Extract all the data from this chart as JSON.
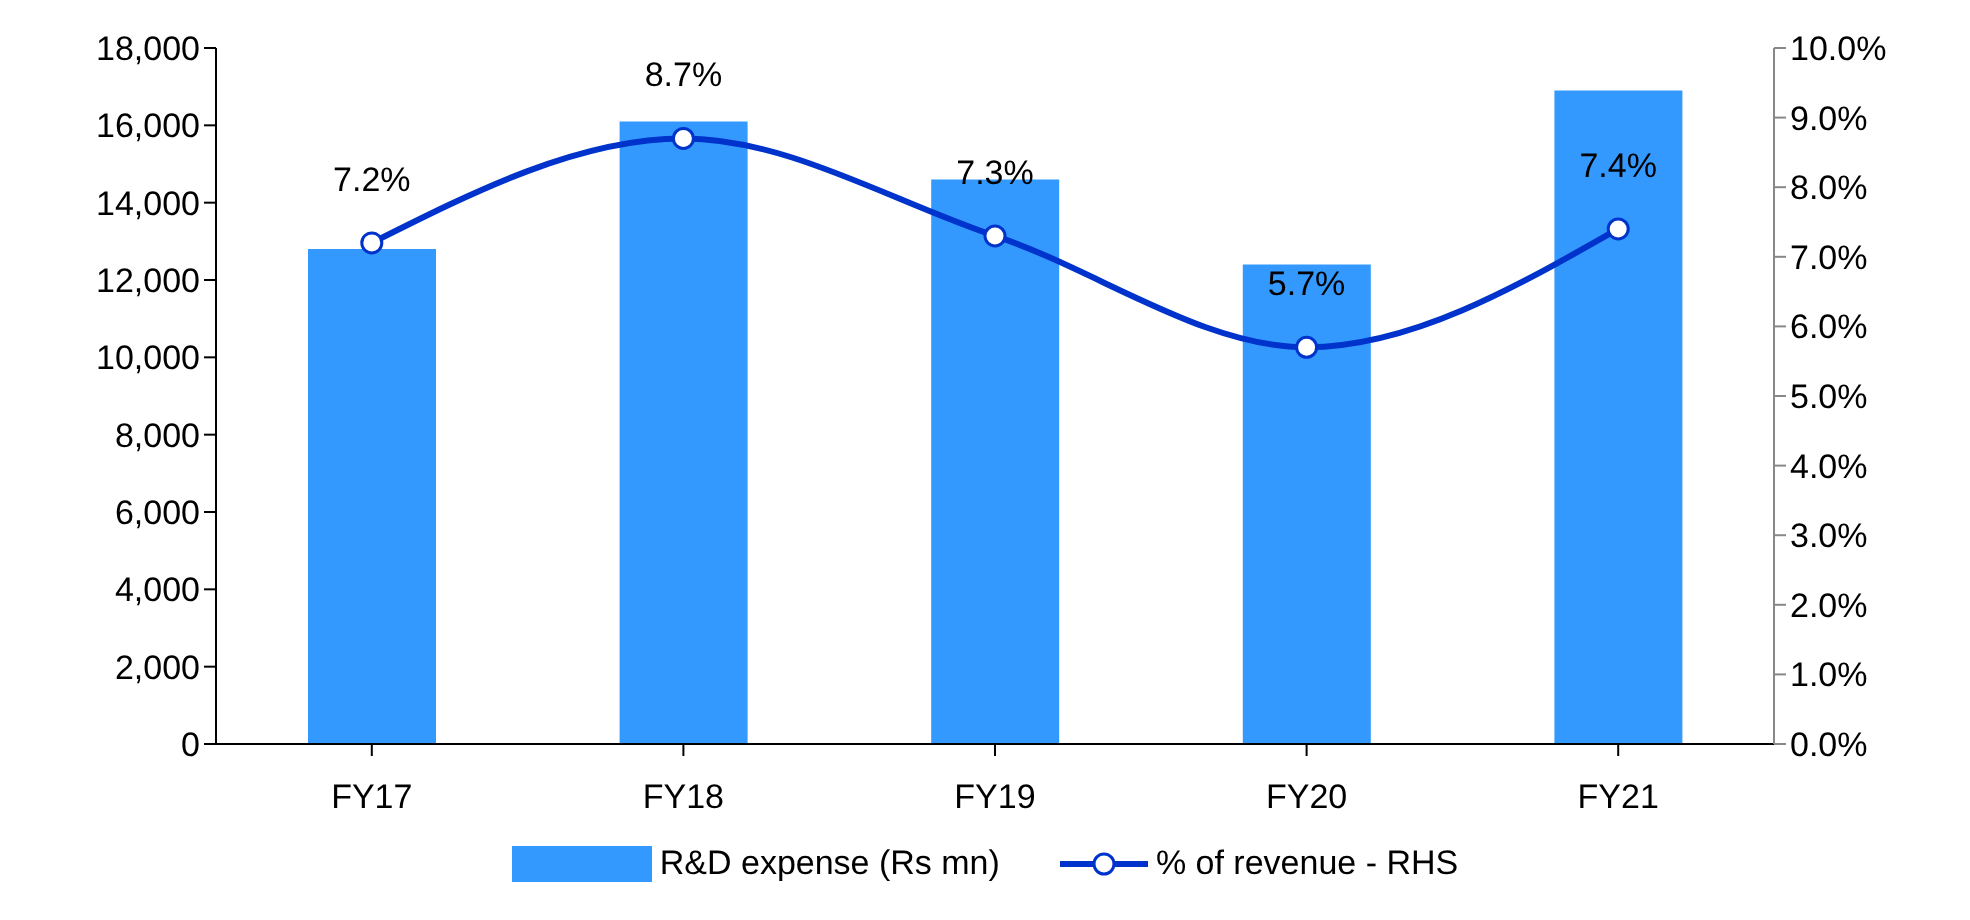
{
  "chart_data": {
    "type": "bar",
    "categories": [
      "FY17",
      "FY18",
      "FY19",
      "FY20",
      "FY21"
    ],
    "series": [
      {
        "name": "R&D expense (Rs mn)",
        "color": "#3399ff",
        "values": [
          12800,
          16100,
          14600,
          12400,
          16900
        ]
      },
      {
        "name": "% of revenue - RHS",
        "type": "line",
        "axis": "y2",
        "color": "#0033cc",
        "values": [
          7.2,
          8.7,
          7.3,
          5.7,
          7.4
        ],
        "value_labels": [
          "7.2%",
          "8.7%",
          "7.3%",
          "5.7%",
          "7.4%"
        ],
        "marker": "circle"
      }
    ],
    "ylim": [
      0,
      18000
    ],
    "yticks": [
      {
        "value": 0,
        "label": "0"
      },
      {
        "value": 2000,
        "label": "2,000"
      },
      {
        "value": 4000,
        "label": "4,000"
      },
      {
        "value": 6000,
        "label": "6,000"
      },
      {
        "value": 8000,
        "label": "8,000"
      },
      {
        "value": 10000,
        "label": "10,000"
      },
      {
        "value": 12000,
        "label": "12,000"
      },
      {
        "value": 14000,
        "label": "14,000"
      },
      {
        "value": 16000,
        "label": "16,000"
      },
      {
        "value": 18000,
        "label": "18,000"
      }
    ],
    "y2lim": [
      0,
      10
    ],
    "y2ticks": [
      {
        "value": 0,
        "label": "0.0%"
      },
      {
        "value": 1,
        "label": "1.0%"
      },
      {
        "value": 2,
        "label": "2.0%"
      },
      {
        "value": 3,
        "label": "3.0%"
      },
      {
        "value": 4,
        "label": "4.0%"
      },
      {
        "value": 5,
        "label": "5.0%"
      },
      {
        "value": 6,
        "label": "6.0%"
      },
      {
        "value": 7,
        "label": "7.0%"
      },
      {
        "value": 8,
        "label": "8.0%"
      },
      {
        "value": 9,
        "label": "9.0%"
      },
      {
        "value": 10,
        "label": "10.0%"
      }
    ],
    "grid": false,
    "legend": "bottom"
  }
}
